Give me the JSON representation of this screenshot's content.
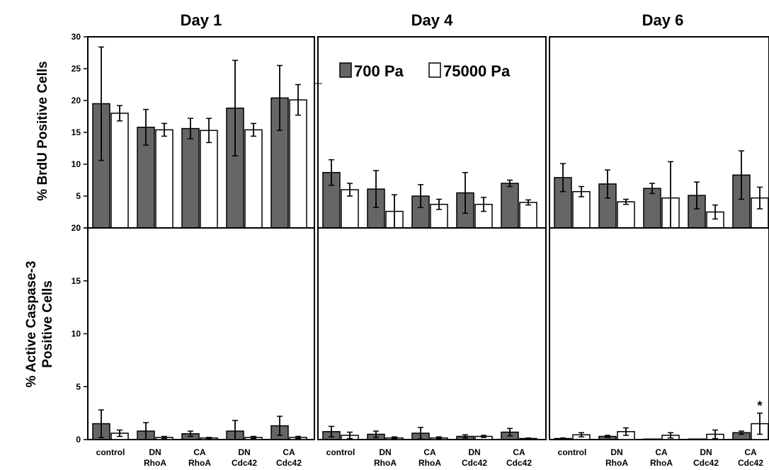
{
  "legend": {
    "items": [
      {
        "label": "700 Pa",
        "color": "#666666"
      },
      {
        "label": "75000 Pa",
        "color": "#ffffff"
      }
    ]
  },
  "colors": {
    "series_700": "#666666",
    "series_75000": "#ffffff",
    "outline": "#000000"
  },
  "chart_data": [
    {
      "type": "bar",
      "panel": "Day 1",
      "row": "BrdU",
      "title": "Day 1",
      "ylabel": "% BrdU Positive Cells",
      "ylim": [
        0,
        30
      ],
      "yticks": [
        0,
        5,
        10,
        15,
        20,
        25,
        30
      ],
      "categories": [
        "control",
        "DN RhoA",
        "CA RhoA",
        "DN Cdc42",
        "CA Cdc42"
      ],
      "series": [
        {
          "name": "700 Pa",
          "values": [
            19.5,
            15.8,
            15.6,
            18.8,
            20.4
          ],
          "errors": [
            8.9,
            2.8,
            1.6,
            7.5,
            5.1
          ]
        },
        {
          "name": "75000 Pa",
          "values": [
            18.0,
            15.4,
            15.3,
            15.4,
            20.1
          ],
          "errors": [
            1.2,
            1.0,
            1.9,
            1.0,
            2.4
          ]
        }
      ],
      "annotations": []
    },
    {
      "type": "bar",
      "panel": "Day 4",
      "row": "BrdU",
      "title": "Day 4",
      "ylabel": "",
      "ylim": [
        0,
        30
      ],
      "yticks": [],
      "categories": [
        "control",
        "DN RhoA",
        "CA RhoA",
        "DN Cdc42",
        "CA Cdc42"
      ],
      "series": [
        {
          "name": "700 Pa",
          "values": [
            8.7,
            6.1,
            5.0,
            5.5,
            7.0
          ],
          "errors": [
            2.0,
            2.9,
            1.8,
            3.2,
            0.5
          ]
        },
        {
          "name": "75000 Pa",
          "values": [
            6.0,
            2.6,
            3.7,
            3.7,
            4.0
          ],
          "errors": [
            1.0,
            2.6,
            0.8,
            1.1,
            0.4
          ]
        }
      ],
      "annotations": []
    },
    {
      "type": "bar",
      "panel": "Day 6",
      "row": "BrdU",
      "title": "Day 6",
      "ylabel": "",
      "ylim": [
        0,
        30
      ],
      "yticks": [],
      "categories": [
        "control",
        "DN RhoA",
        "CA RhoA",
        "DN Cdc42",
        "CA Cdc42"
      ],
      "series": [
        {
          "name": "700 Pa",
          "values": [
            7.9,
            6.9,
            6.2,
            5.1,
            8.3
          ],
          "errors": [
            2.2,
            2.2,
            0.8,
            2.1,
            3.8
          ]
        },
        {
          "name": "75000 Pa",
          "values": [
            5.7,
            4.1,
            4.7,
            2.5,
            4.7
          ],
          "errors": [
            0.8,
            0.4,
            5.7,
            1.1,
            1.7
          ]
        }
      ],
      "annotations": []
    },
    {
      "type": "bar",
      "panel": "Day 1",
      "row": "Caspase",
      "title": "",
      "ylabel": "% Active Caspase-3 Positive Cells",
      "ylim": [
        0,
        20
      ],
      "yticks": [
        0,
        5,
        10,
        15,
        20
      ],
      "categories": [
        "control",
        "DN RhoA",
        "CA RhoA",
        "DN Cdc42",
        "CA Cdc42"
      ],
      "series": [
        {
          "name": "700 Pa",
          "values": [
            1.5,
            0.8,
            0.55,
            0.8,
            1.3
          ],
          "errors": [
            1.3,
            0.8,
            0.25,
            1.0,
            0.9
          ]
        },
        {
          "name": "75000 Pa",
          "values": [
            0.6,
            0.2,
            0.15,
            0.2,
            0.2
          ],
          "errors": [
            0.3,
            0.1,
            0.05,
            0.1,
            0.1
          ]
        }
      ],
      "annotations": []
    },
    {
      "type": "bar",
      "panel": "Day 4",
      "row": "Caspase",
      "title": "",
      "ylabel": "",
      "ylim": [
        0,
        20
      ],
      "yticks": [],
      "categories": [
        "control",
        "DN RhoA",
        "CA RhoA",
        "DN Cdc42",
        "CA Cdc42"
      ],
      "series": [
        {
          "name": "700 Pa",
          "values": [
            0.75,
            0.5,
            0.6,
            0.3,
            0.7
          ],
          "errors": [
            0.5,
            0.3,
            0.55,
            0.15,
            0.35
          ]
        },
        {
          "name": "75000 Pa",
          "values": [
            0.4,
            0.15,
            0.15,
            0.3,
            0.1
          ],
          "errors": [
            0.3,
            0.1,
            0.1,
            0.1,
            0.05
          ]
        }
      ],
      "annotations": []
    },
    {
      "type": "bar",
      "panel": "Day 6",
      "row": "Caspase",
      "title": "",
      "ylabel": "",
      "ylim": [
        0,
        20
      ],
      "yticks": [],
      "categories": [
        "control",
        "DN RhoA",
        "CA RhoA",
        "DN Cdc42",
        "CA Cdc42"
      ],
      "series": [
        {
          "name": "700 Pa",
          "values": [
            0.1,
            0.3,
            0.05,
            0.05,
            0.65
          ],
          "errors": [
            0.05,
            0.1,
            0.0,
            0.0,
            0.15
          ]
        },
        {
          "name": "75000 Pa",
          "values": [
            0.45,
            0.75,
            0.4,
            0.5,
            1.5
          ],
          "errors": [
            0.2,
            0.35,
            0.25,
            0.4,
            1.0
          ]
        }
      ],
      "annotations": [
        {
          "category": "CA Cdc42",
          "series": "75000 Pa",
          "text": "*"
        }
      ]
    }
  ]
}
